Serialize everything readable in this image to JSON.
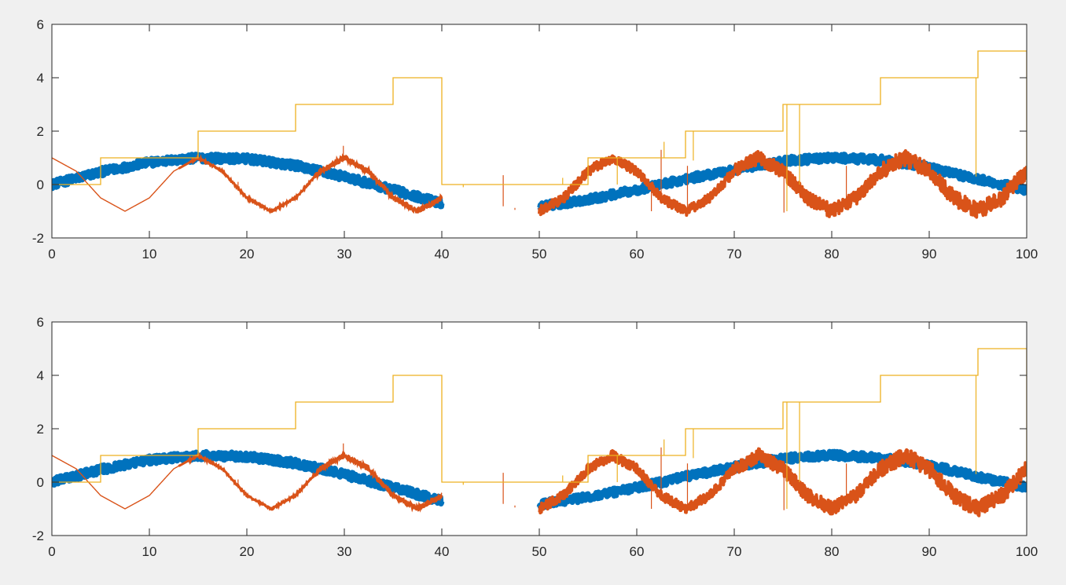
{
  "figure": {
    "background": "#f0f0f0",
    "axes_background": "#ffffff",
    "axis_color": "#262626"
  },
  "chart_data": [
    {
      "type": "line",
      "title": "",
      "xlabel": "",
      "ylabel": "",
      "xlim": [
        0,
        100
      ],
      "ylim": [
        -2,
        6
      ],
      "xticks": [
        0,
        10,
        20,
        30,
        40,
        50,
        60,
        70,
        80,
        90,
        100
      ],
      "yticks": [
        -2,
        0,
        2,
        4,
        6
      ],
      "grid": false,
      "legend": "none",
      "series": [
        {
          "color": "#0072BD",
          "style": "noisy-band",
          "description_values": "sin(2*pi*t/64) sampled with heavy noise, t in [0,40] and [50,100], gap 40-50",
          "x": [
            0,
            5,
            10,
            15,
            20,
            25,
            30,
            35,
            40,
            50,
            55,
            60,
            65,
            70,
            75,
            80,
            85,
            90,
            95,
            100
          ],
          "y": [
            0.0,
            0.47,
            0.83,
            1.0,
            0.96,
            0.71,
            0.29,
            -0.2,
            -0.71,
            -0.83,
            -0.56,
            -0.2,
            0.2,
            0.56,
            0.88,
            1.0,
            0.92,
            0.63,
            0.2,
            -0.2
          ],
          "noise_amplitude": 0.15
        },
        {
          "color": "#D95319",
          "style": "line",
          "x": [
            0,
            2.5,
            5,
            7.5,
            10,
            12.5,
            15,
            17.5,
            20,
            22.5,
            25,
            27.5,
            30,
            32.5,
            35,
            37.5,
            40,
            50,
            52.5,
            55,
            57.5,
            60,
            62.5,
            65,
            67.5,
            70,
            72.5,
            75,
            77.5,
            80,
            82.5,
            85,
            87.5,
            90,
            92.5,
            95,
            97.5,
            100
          ],
          "y": [
            1.0,
            0.5,
            -0.5,
            -1.0,
            -0.5,
            0.5,
            1.0,
            0.5,
            -0.5,
            -1.0,
            -0.5,
            0.5,
            1.0,
            0.5,
            -0.5,
            -1.0,
            -0.5,
            -1.0,
            -0.5,
            0.5,
            1.0,
            0.5,
            -0.5,
            -1.0,
            -0.5,
            0.5,
            1.0,
            0.5,
            -0.5,
            -1.0,
            -0.5,
            0.5,
            1.0,
            0.5,
            -0.5,
            -1.0,
            -0.5,
            0.5
          ],
          "noise_amplitude_segments": [
            {
              "from": 0,
              "to": 14,
              "amp": 0.0
            },
            {
              "from": 14,
              "to": 27,
              "amp": 0.04
            },
            {
              "from": 27,
              "to": 40,
              "amp": 0.1
            },
            {
              "from": 50,
              "to": 70,
              "amp": 0.18
            },
            {
              "from": 70,
              "to": 85,
              "amp": 0.26
            },
            {
              "from": 85,
              "to": 100,
              "amp": 0.3
            }
          ],
          "spikes": [
            {
              "x": 19.1,
              "y": 0.1
            },
            {
              "x": 29.9,
              "y": 1.45
            },
            {
              "x": 46.3,
              "y": 0.35
            },
            {
              "x": 47.5,
              "y": -0.95
            },
            {
              "x": 61.5,
              "y": -1.0
            },
            {
              "x": 62.5,
              "y": 1.3
            },
            {
              "x": 65.2,
              "y": 0.7
            },
            {
              "x": 75.1,
              "y": -1.05
            },
            {
              "x": 81.5,
              "y": 0.7
            }
          ]
        },
        {
          "color": "#EDB120",
          "style": "step",
          "x": [
            0,
            5,
            5,
            15,
            15,
            25,
            25,
            35,
            35,
            40,
            40,
            55,
            55,
            65,
            65,
            75,
            75,
            85,
            85,
            95,
            95,
            100,
            100
          ],
          "y": [
            0,
            0,
            1,
            1,
            2,
            2,
            3,
            3,
            4,
            4,
            0,
            0,
            1,
            1,
            2,
            2,
            3,
            3,
            4,
            4,
            5,
            5,
            0
          ],
          "spikes": [
            {
              "x": 42.2,
              "y": -0.1
            },
            {
              "x": 52.4,
              "y": 0.25
            },
            {
              "x": 58.0,
              "y": 0.0
            },
            {
              "x": 62.8,
              "y": 1.6
            },
            {
              "x": 65.8,
              "y": 0.9
            },
            {
              "x": 75.4,
              "y": -1.0
            },
            {
              "x": 76.7,
              "y": 0.0
            },
            {
              "x": 94.8,
              "y": 0.3
            }
          ]
        }
      ]
    },
    {
      "type": "line",
      "title": "",
      "xlabel": "",
      "ylabel": "",
      "xlim": [
        0,
        100
      ],
      "ylim": [
        -2,
        6
      ],
      "xticks": [
        0,
        10,
        20,
        30,
        40,
        50,
        60,
        70,
        80,
        90,
        100
      ],
      "yticks": [
        -2,
        0,
        2,
        4,
        6
      ],
      "grid": false,
      "legend": "none",
      "series": [
        {
          "color": "#0072BD",
          "style": "noisy-band",
          "x": [
            0,
            5,
            10,
            15,
            20,
            25,
            30,
            35,
            40,
            50,
            55,
            60,
            65,
            70,
            75,
            80,
            85,
            90,
            95,
            100
          ],
          "y": [
            0.0,
            0.47,
            0.83,
            1.0,
            0.96,
            0.71,
            0.29,
            -0.2,
            -0.71,
            -0.83,
            -0.56,
            -0.2,
            0.2,
            0.56,
            0.88,
            1.0,
            0.92,
            0.63,
            0.2,
            -0.2
          ],
          "noise_amplitude": 0.15
        },
        {
          "color": "#D95319",
          "style": "line",
          "x": [
            0,
            2.5,
            5,
            7.5,
            10,
            12.5,
            15,
            17.5,
            20,
            22.5,
            25,
            27.5,
            30,
            32.5,
            35,
            37.5,
            40,
            50,
            52.5,
            55,
            57.5,
            60,
            62.5,
            65,
            67.5,
            70,
            72.5,
            75,
            77.5,
            80,
            82.5,
            85,
            87.5,
            90,
            92.5,
            95,
            97.5,
            100
          ],
          "y": [
            1.0,
            0.5,
            -0.5,
            -1.0,
            -0.5,
            0.5,
            1.0,
            0.5,
            -0.5,
            -1.0,
            -0.5,
            0.5,
            1.0,
            0.5,
            -0.5,
            -1.0,
            -0.5,
            -1.0,
            -0.5,
            0.5,
            1.0,
            0.5,
            -0.5,
            -1.0,
            -0.5,
            0.5,
            1.0,
            0.5,
            -0.5,
            -1.0,
            -0.5,
            0.5,
            1.0,
            0.5,
            -0.5,
            -1.0,
            -0.5,
            0.5
          ],
          "noise_amplitude_segments": [
            {
              "from": 0,
              "to": 14,
              "amp": 0.0
            },
            {
              "from": 14,
              "to": 27,
              "amp": 0.04
            },
            {
              "from": 27,
              "to": 40,
              "amp": 0.1
            },
            {
              "from": 50,
              "to": 70,
              "amp": 0.18
            },
            {
              "from": 70,
              "to": 85,
              "amp": 0.26
            },
            {
              "from": 85,
              "to": 100,
              "amp": 0.3
            }
          ],
          "spikes": [
            {
              "x": 19.1,
              "y": 0.1
            },
            {
              "x": 29.9,
              "y": 1.45
            },
            {
              "x": 46.3,
              "y": 0.35
            },
            {
              "x": 47.5,
              "y": -0.95
            },
            {
              "x": 61.5,
              "y": -1.0
            },
            {
              "x": 62.5,
              "y": 1.3
            },
            {
              "x": 65.2,
              "y": 0.7
            },
            {
              "x": 75.1,
              "y": -1.05
            },
            {
              "x": 81.5,
              "y": 0.7
            }
          ]
        },
        {
          "color": "#EDB120",
          "style": "step",
          "x": [
            0,
            5,
            5,
            15,
            15,
            25,
            25,
            35,
            35,
            40,
            40,
            55,
            55,
            65,
            65,
            75,
            75,
            85,
            85,
            95,
            95,
            100,
            100
          ],
          "y": [
            0,
            0,
            1,
            1,
            2,
            2,
            3,
            3,
            4,
            4,
            0,
            0,
            1,
            1,
            2,
            2,
            3,
            3,
            4,
            4,
            5,
            5,
            0
          ],
          "spikes": [
            {
              "x": 42.2,
              "y": -0.1
            },
            {
              "x": 52.4,
              "y": 0.25
            },
            {
              "x": 58.0,
              "y": 0.0
            },
            {
              "x": 62.8,
              "y": 1.6
            },
            {
              "x": 65.8,
              "y": 0.9
            },
            {
              "x": 75.4,
              "y": -1.0
            },
            {
              "x": 76.7,
              "y": 0.0
            },
            {
              "x": 94.8,
              "y": 0.3
            }
          ]
        }
      ]
    }
  ]
}
